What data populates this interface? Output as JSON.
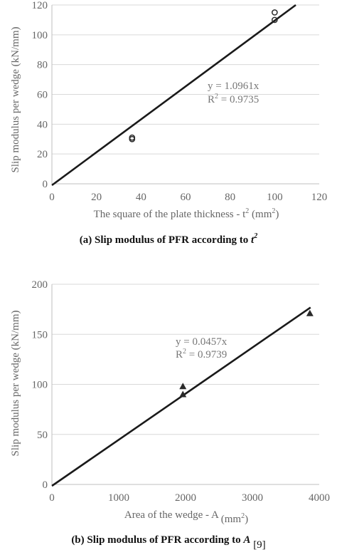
{
  "chart_data": [
    {
      "type": "scatter",
      "xlabel_main": "The square of the plate thickness - t",
      "xlabel_sup": "2",
      "xlabel_unit": " (mm",
      "xlabel_unit_sup": "2",
      "xlabel_end": ")",
      "ylabel": "Slip modulus per wedge (kN/mm)",
      "xlim": [
        0,
        120
      ],
      "ylim": [
        0,
        120
      ],
      "xticks": [
        0,
        20,
        40,
        60,
        80,
        100,
        120
      ],
      "yticks": [
        0,
        20,
        40,
        60,
        80,
        100,
        120
      ],
      "grid": "horizontal",
      "marker": "circle",
      "points": [
        {
          "x": 36,
          "y": 30
        },
        {
          "x": 36,
          "y": 31
        },
        {
          "x": 100,
          "y": 110
        },
        {
          "x": 100,
          "y": 115
        }
      ],
      "fit": {
        "slope": 1.0961,
        "x_range": [
          0,
          120
        ]
      },
      "equation": "y = 1.0961x",
      "r2_label": "R",
      "r2_sup": "2",
      "r2_value": " = 0.9735",
      "caption_main": "(a) Slip modulus of PFR according to ",
      "caption_var": "t",
      "caption_sup": "2",
      "caption_ref": ""
    },
    {
      "type": "scatter",
      "xlabel_main": "Area of the wedge - A",
      "xlabel_sup": "",
      "xlabel_unit": " (mm",
      "xlabel_unit_sup": "2",
      "xlabel_end": ")",
      "ylabel": "Slip modulus per wedge (kN/mm)",
      "xlim": [
        0,
        4000
      ],
      "ylim": [
        0,
        200
      ],
      "xticks": [
        0,
        1000,
        2000,
        3000,
        4000
      ],
      "yticks": [
        0,
        50,
        100,
        150,
        200
      ],
      "grid": "horizontal",
      "marker": "triangle",
      "points": [
        {
          "x": 1960,
          "y": 98
        },
        {
          "x": 1960,
          "y": 90
        },
        {
          "x": 3860,
          "y": 171
        }
      ],
      "fit": {
        "slope": 0.0457,
        "x_range": [
          0,
          3870
        ]
      },
      "equation": "y = 0.0457x",
      "r2_label": "R",
      "r2_sup": "2",
      "r2_value": " = 0.9739",
      "caption_main": "(b) Slip modulus of PFR according to ",
      "caption_var": "A",
      "caption_sup": "",
      "caption_ref": " [9]"
    }
  ]
}
